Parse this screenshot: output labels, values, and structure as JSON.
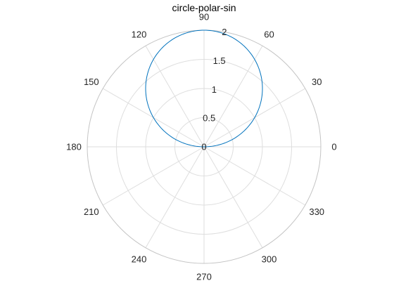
{
  "chart_data": {
    "type": "line",
    "coordinate_system": "polar",
    "title": "circle-polar-sin",
    "theta_unit": "degrees",
    "theta_ticks": [
      0,
      30,
      60,
      90,
      120,
      150,
      180,
      210,
      240,
      270,
      300,
      330
    ],
    "theta_tick_labels": [
      "0",
      "30",
      "60",
      "90",
      "120",
      "150",
      "180",
      "210",
      "240",
      "270",
      "300",
      "330"
    ],
    "r_ticks": [
      0,
      0.5,
      1,
      1.5,
      2
    ],
    "r_tick_labels": [
      "0",
      "0.5",
      "1",
      "1.5",
      "2"
    ],
    "r_tick_label_angle": 80,
    "rlim": [
      0,
      2
    ],
    "grid": true,
    "zero_direction": "right",
    "theta_direction": "counterclockwise",
    "series": [
      {
        "equation": "r = 2*sin(theta)",
        "color": "#0072bd",
        "theta": [
          0,
          15,
          30,
          45,
          60,
          75,
          90,
          105,
          120,
          135,
          150,
          165,
          180
        ],
        "r": [
          0,
          0.518,
          1,
          1.414,
          1.732,
          1.932,
          2,
          1.932,
          1.732,
          1.414,
          1,
          0.518,
          0
        ]
      }
    ]
  },
  "colors": {
    "grid": "#dedede",
    "outer_ring": "#c4c4c4",
    "text": "#262626",
    "series": "#0072bd"
  }
}
